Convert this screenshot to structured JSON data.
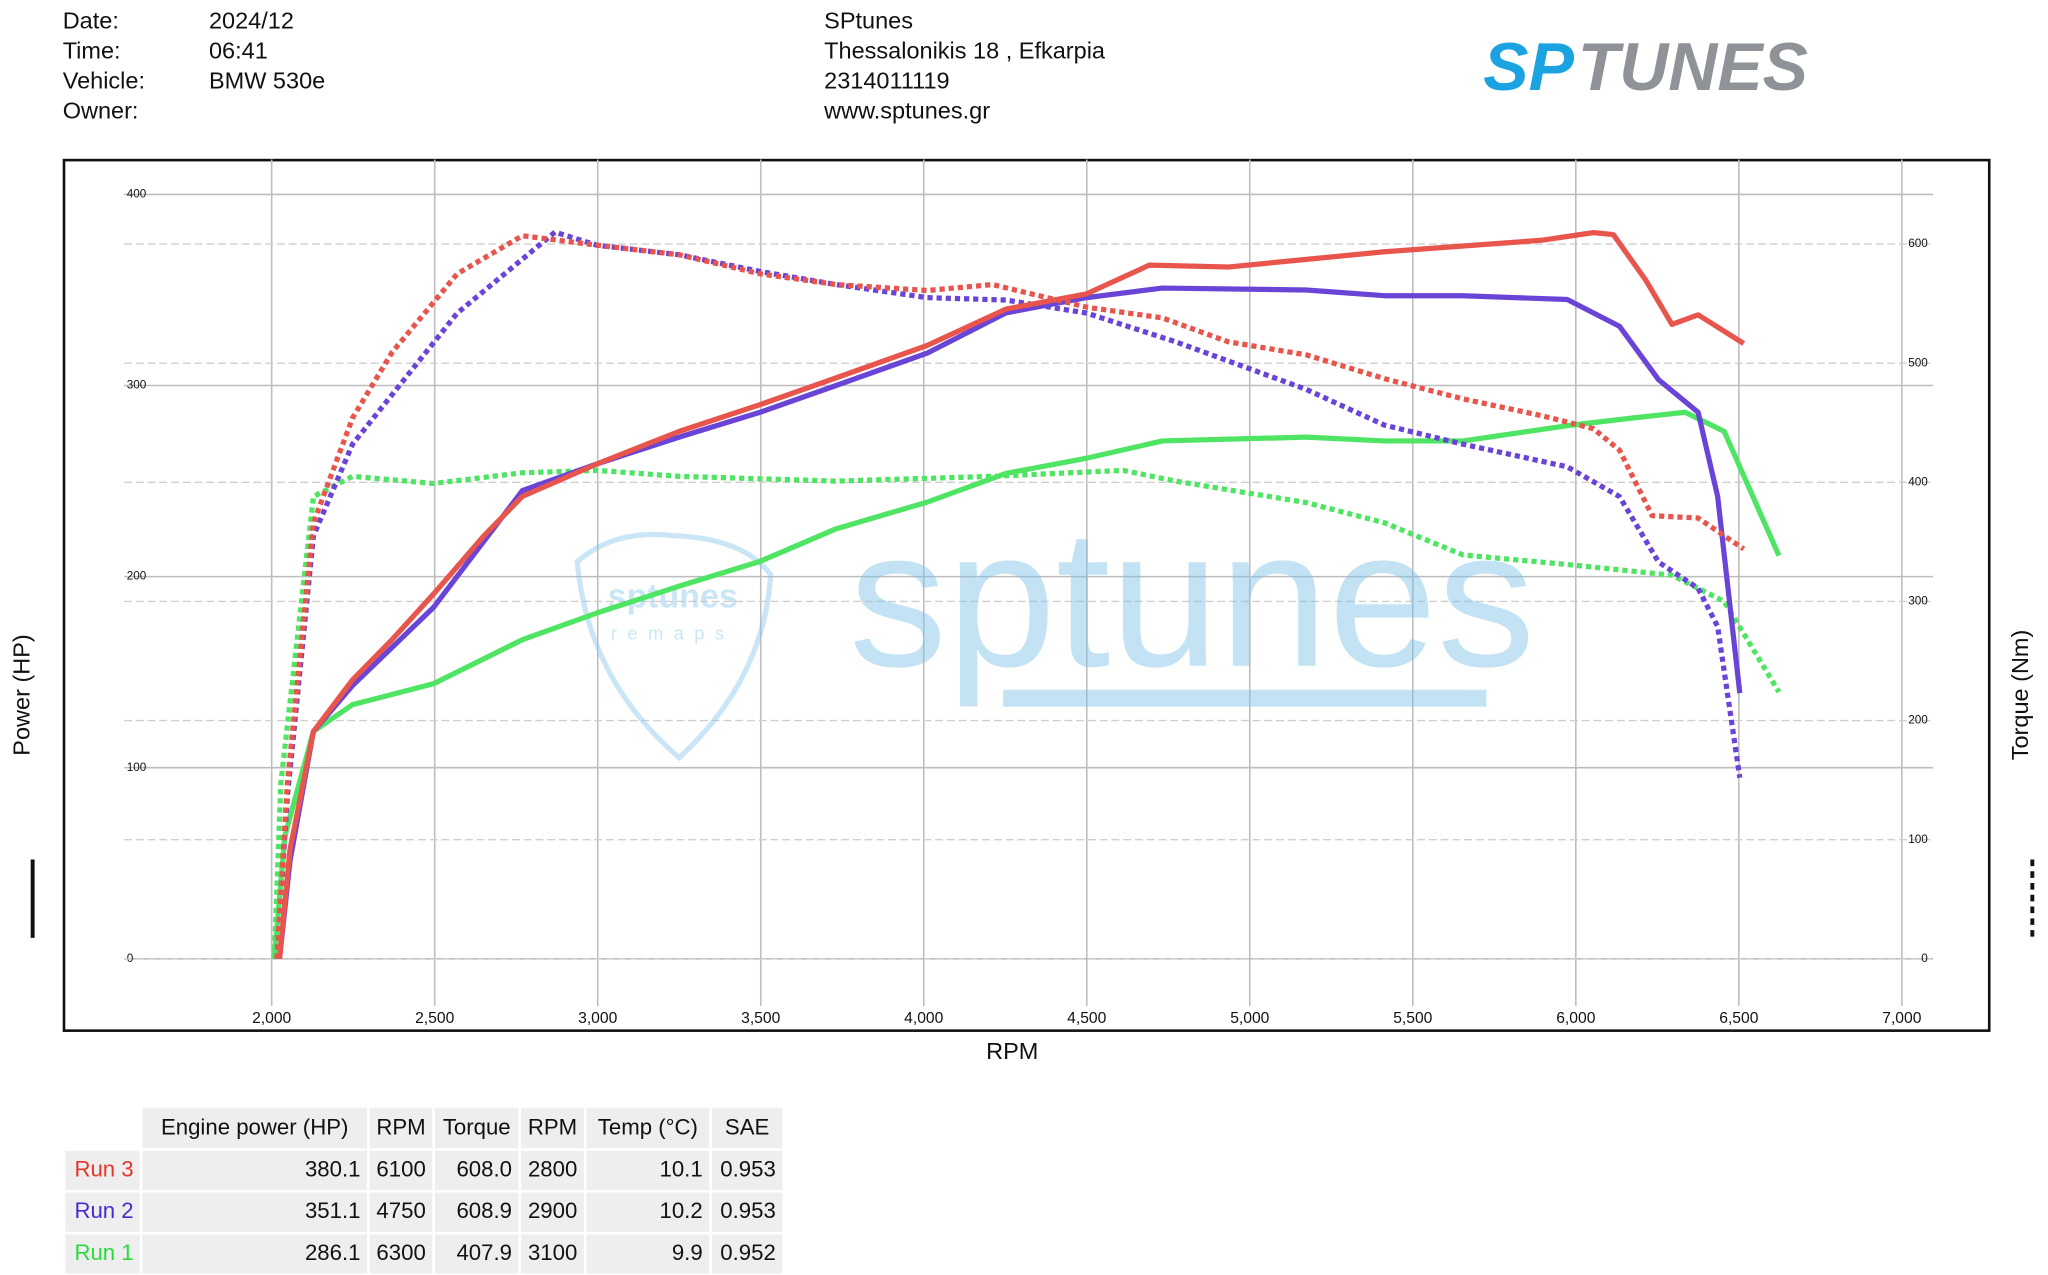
{
  "header": {
    "fields": [
      {
        "label": "Date:",
        "value": "2024/12"
      },
      {
        "label": "Time:",
        "value": "06:41"
      },
      {
        "label": "Vehicle:",
        "value": "BMW 530e"
      },
      {
        "label": "Owner:"
      }
    ],
    "shop": [
      "SPtunes",
      "Thessalonikis 18 , Efkarpia",
      "2314011119",
      "www.sptunes.gr"
    ],
    "logo": {
      "left": "SP",
      "right": "TUNES"
    }
  },
  "watermark": {
    "big": "sptunes",
    "small": "sptunes",
    "sub": "remaps"
  },
  "chart_data": {
    "type": "line",
    "xlabel": "RPM",
    "ylabel": "Power (HP)",
    "y2label": "Torque (Nm)",
    "xlim": [
      1363,
      7268
    ],
    "ylim": [
      -37.6,
      418.3
    ],
    "y2lim": [
      -60.3,
      671
    ],
    "grid": true,
    "xticks": [
      {
        "value": 2000,
        "label": "2,000"
      },
      {
        "value": 2500,
        "label": "2,500"
      },
      {
        "value": 3000,
        "label": "3,000"
      },
      {
        "value": 3500,
        "label": "3,500"
      },
      {
        "value": 4000,
        "label": "4,000"
      },
      {
        "value": 4500,
        "label": "4,500"
      },
      {
        "value": 5000,
        "label": "5,000"
      },
      {
        "value": 5500,
        "label": "5,500"
      },
      {
        "value": 6000,
        "label": "6,000"
      },
      {
        "value": 6500,
        "label": "6,500"
      },
      {
        "value": 7000,
        "label": "7,000"
      }
    ],
    "yticks": [
      0,
      100,
      200,
      300,
      400
    ],
    "y2ticks": [
      0,
      100,
      200,
      300,
      400,
      500,
      600
    ],
    "series": [
      {
        "color": "#4fe463",
        "style": "solid",
        "axis": "y",
        "x": [
          2008,
          2040,
          2128,
          2248,
          2497,
          2769,
          2998,
          3250,
          3498,
          3731,
          4011,
          4252,
          4500,
          4732,
          5173,
          5413,
          5654,
          5974,
          6174,
          6335,
          6455,
          6623
        ],
        "values": [
          0,
          64,
          119,
          133,
          144,
          167,
          181,
          195,
          208,
          225,
          239,
          254,
          262,
          271,
          273,
          271,
          271,
          279,
          283,
          286,
          276,
          211
        ]
      },
      {
        "color": "#4fe463",
        "style": "dashed",
        "axis": "y2",
        "x": [
          2008,
          2028,
          2128,
          2248,
          2497,
          2769,
          2998,
          3250,
          3731,
          4211,
          4612,
          4772,
          5173,
          5413,
          5654,
          5974,
          6295,
          6455,
          6623
        ],
        "values": [
          0,
          147,
          388,
          405,
          399,
          408,
          410,
          405,
          401,
          405,
          410,
          401,
          383,
          366,
          339,
          331,
          322,
          300,
          224
        ]
      },
      {
        "color": "#6a44d6",
        "style": "solid",
        "axis": "y",
        "x": [
          2024,
          2056,
          2128,
          2248,
          2497,
          2769,
          2998,
          3250,
          3498,
          3731,
          4011,
          4252,
          4500,
          4732,
          5173,
          5413,
          5654,
          5974,
          6134,
          6254,
          6375,
          6435,
          6503
        ],
        "values": [
          0,
          51,
          119,
          143,
          184,
          245,
          259,
          273,
          286,
          300,
          317,
          338,
          346,
          351,
          350,
          347,
          347,
          345,
          331,
          303,
          286,
          242,
          139
        ]
      },
      {
        "color": "#6a44d6",
        "style": "dashed",
        "axis": "y2",
        "x": [
          2016,
          2048,
          2128,
          2248,
          2569,
          2869,
          2998,
          3250,
          3498,
          3731,
          4011,
          4252,
          4500,
          4772,
          5173,
          5413,
          5654,
          5974,
          6134,
          6254,
          6375,
          6435,
          6503
        ],
        "values": [
          0,
          136,
          355,
          432,
          542,
          610,
          599,
          591,
          577,
          566,
          555,
          553,
          542,
          518,
          478,
          448,
          432,
          413,
          388,
          333,
          311,
          279,
          152
        ]
      },
      {
        "color": "#e8554c",
        "style": "solid",
        "axis": "y",
        "x": [
          2024,
          2056,
          2128,
          2248,
          2369,
          2497,
          2649,
          2769,
          2998,
          3250,
          3498,
          3731,
          4011,
          4252,
          4500,
          4692,
          4933,
          5173,
          5413,
          5654,
          5894,
          6054,
          6115,
          6215,
          6295,
          6375,
          6515
        ],
        "values": [
          0,
          57,
          119,
          146,
          167,
          191,
          221,
          242,
          259,
          276,
          290,
          304,
          321,
          340,
          348,
          363,
          362,
          366,
          370,
          373,
          376,
          380,
          379,
          355,
          332,
          337,
          322
        ]
      },
      {
        "color": "#e8554c",
        "style": "dashed",
        "axis": "y2",
        "x": [
          2016,
          2048,
          2128,
          2248,
          2369,
          2569,
          2769,
          2998,
          3250,
          3498,
          3731,
          4011,
          4211,
          4500,
          4732,
          4933,
          5173,
          5413,
          5654,
          5894,
          6054,
          6134,
          6234,
          6375,
          6515
        ],
        "values": [
          0,
          147,
          366,
          454,
          509,
          575,
          607,
          599,
          591,
          575,
          566,
          561,
          566,
          547,
          538,
          518,
          507,
          487,
          470,
          456,
          445,
          427,
          372,
          370,
          344
        ]
      }
    ]
  },
  "table": {
    "headers": [
      "Engine power (HP)",
      "RPM",
      "Torque",
      "RPM",
      "Temp (°C)",
      "SAE"
    ],
    "rows": [
      {
        "name": "Run 3",
        "color": "#e8352c",
        "cells": [
          "380.1",
          "6100",
          "608.0",
          "2800",
          "10.1",
          "0.953"
        ]
      },
      {
        "name": "Run 2",
        "color": "#4a2ad0",
        "cells": [
          "351.1",
          "4750",
          "608.9",
          "2900",
          "10.2",
          "0.953"
        ]
      },
      {
        "name": "Run 1",
        "color": "#2bd93e",
        "cells": [
          "286.1",
          "6300",
          "407.9",
          "3100",
          "9.9",
          "0.952"
        ]
      }
    ]
  }
}
